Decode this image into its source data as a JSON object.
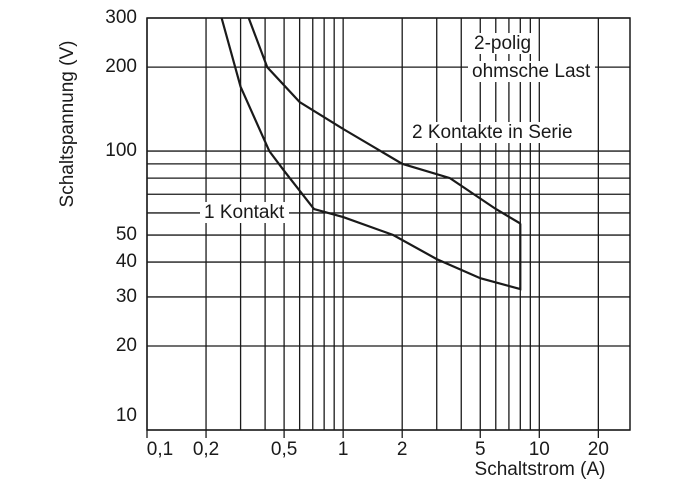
{
  "chart_data": {
    "type": "line",
    "x_label": "Schaltstrom (A)",
    "y_label": "Schaltspannung (V)",
    "xscale": "log",
    "yscale": "log",
    "xlim": [
      0.1,
      29
    ],
    "ylim": [
      10,
      300
    ],
    "xticks": [
      {
        "value": 0.1,
        "label": "0,1"
      },
      {
        "value": 0.2,
        "label": "0,2"
      },
      {
        "value": 0.5,
        "label": "0,5"
      },
      1,
      2,
      5,
      10,
      20
    ],
    "yticks": [
      10,
      20,
      30,
      40,
      50,
      100,
      200,
      300
    ],
    "x_gridlines": [
      0.3,
      0.4,
      0.6,
      0.7,
      0.8,
      0.9,
      3,
      4,
      6,
      7,
      8,
      9
    ],
    "y_gridlines": [
      60,
      70,
      80,
      90
    ],
    "grid": true,
    "annotations": [
      "2-polig",
      "ohmsche Last"
    ],
    "series": [
      {
        "name": "1 Kontakt",
        "color": "#1a1a1a",
        "x": [
          0.24,
          0.3,
          0.42,
          0.5,
          0.71,
          1,
          1.8,
          3,
          5,
          8,
          8
        ],
        "values": [
          300,
          170,
          100,
          85,
          62,
          58,
          50,
          41,
          35,
          32,
          55
        ]
      },
      {
        "name": "2 Kontakte in Serie",
        "color": "#1a1a1a",
        "x": [
          0.33,
          0.41,
          0.6,
          1,
          2,
          3.5,
          6,
          8
        ],
        "values": [
          300,
          200,
          150,
          120,
          90,
          80,
          62,
          55
        ]
      }
    ]
  }
}
